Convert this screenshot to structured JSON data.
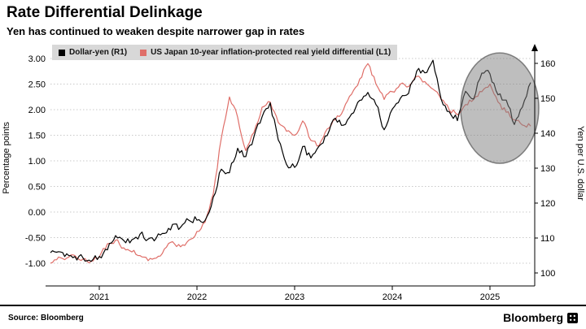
{
  "header": {
    "title": "Rate Differential Delinkage",
    "subtitle": "Yen has continued to weaken despite narrower gap in rates"
  },
  "legend": [
    {
      "label": "Dollar-yen (R1)",
      "color": "#000000"
    },
    {
      "label": "US Japan 10-year inflation-protected real yield differential (L1)",
      "color": "#df6e68"
    }
  ],
  "footer": {
    "source": "Source: Bloomberg",
    "brand": "Bloomberg"
  },
  "colors": {
    "grid": "#c9c9c9",
    "legend_bg": "#d8d8d8",
    "highlight_fill": "rgba(125,125,125,0.5)",
    "highlight_stroke": "rgba(60,60,60,0.6)"
  },
  "chart_data": {
    "type": "line",
    "title": "Rate Differential Delinkage",
    "subtitle": "Yen has continued to weaken despite narrower gap in rates",
    "grid": true,
    "legend_position": "top-left",
    "left_axis": {
      "label": "Percentage points",
      "min": -1.0,
      "max": 3.0,
      "tick_labels": [
        "3.00",
        "2.50",
        "2.00",
        "1.50",
        "1.00",
        "0.50",
        "0.00",
        "-0.50",
        "-1.00"
      ],
      "tick_values": [
        3.0,
        2.5,
        2.0,
        1.5,
        1.0,
        0.5,
        0.0,
        -0.5,
        -1.0
      ]
    },
    "right_axis": {
      "label": "Yen per U.S. dollar",
      "min": 100,
      "max": 160,
      "tick_labels": [
        "160",
        "150",
        "140",
        "130",
        "120",
        "110",
        "100"
      ],
      "tick_values": [
        160,
        150,
        140,
        130,
        120,
        110,
        100
      ]
    },
    "x_axis": {
      "min": 2020.5,
      "max": 2025.417,
      "tick_labels": [
        "2021",
        "2022",
        "2023",
        "2024",
        "2025"
      ],
      "tick_values": [
        2021,
        2022,
        2023,
        2024,
        2025
      ]
    },
    "x": [
      2020.5,
      2020.583,
      2020.667,
      2020.75,
      2020.833,
      2020.917,
      2021.0,
      2021.083,
      2021.167,
      2021.25,
      2021.333,
      2021.417,
      2021.5,
      2021.583,
      2021.667,
      2021.75,
      2021.833,
      2021.917,
      2022.0,
      2022.083,
      2022.167,
      2022.25,
      2022.333,
      2022.417,
      2022.5,
      2022.583,
      2022.667,
      2022.75,
      2022.833,
      2022.917,
      2023.0,
      2023.083,
      2023.167,
      2023.25,
      2023.333,
      2023.417,
      2023.5,
      2023.583,
      2023.667,
      2023.75,
      2023.833,
      2023.917,
      2024.0,
      2024.083,
      2024.167,
      2024.25,
      2024.333,
      2024.417,
      2024.5,
      2024.583,
      2024.667,
      2024.75,
      2024.833,
      2024.917,
      2025.0,
      2025.083,
      2025.167,
      2025.25,
      2025.333,
      2025.417
    ],
    "series": [
      {
        "name": "Dollar-yen (R1)",
        "axis": "right",
        "color": "#000000",
        "values": [
          105.8,
          106.1,
          105.5,
          104.7,
          104.3,
          103.3,
          104.7,
          106.6,
          110.7,
          109.3,
          109.5,
          111.1,
          109.7,
          110.0,
          111.3,
          113.9,
          113.1,
          115.1,
          115.1,
          115.0,
          121.7,
          129.7,
          128.7,
          135.7,
          133.3,
          138.9,
          144.7,
          148.7,
          138.1,
          131.1,
          130.2,
          136.2,
          132.9,
          136.3,
          139.3,
          144.3,
          142.3,
          145.5,
          149.4,
          151.7,
          148.2,
          141.0,
          146.9,
          150.0,
          151.4,
          157.8,
          157.3,
          160.9,
          149.8,
          146.2,
          143.6,
          152.0,
          149.8,
          157.2,
          157.0,
          151.0,
          149.5,
          142.5,
          147.5,
          154.5
        ]
      },
      {
        "name": "US Japan 10-year inflation-protected real yield differential (L1)",
        "axis": "left",
        "color": "#df6e68",
        "values": [
          -1.0,
          -0.88,
          -0.9,
          -0.85,
          -0.92,
          -0.96,
          -0.88,
          -0.62,
          -0.55,
          -0.7,
          -0.78,
          -0.85,
          -0.95,
          -0.9,
          -0.72,
          -0.58,
          -0.68,
          -0.55,
          -0.38,
          -0.2,
          0.35,
          1.45,
          2.25,
          1.85,
          1.2,
          1.55,
          2.05,
          2.15,
          1.75,
          1.58,
          1.5,
          1.78,
          1.4,
          1.3,
          1.62,
          1.8,
          2.0,
          2.3,
          2.6,
          2.9,
          2.5,
          2.2,
          2.35,
          2.5,
          2.45,
          2.65,
          2.55,
          2.4,
          2.2,
          2.0,
          1.9,
          2.1,
          2.2,
          2.35,
          2.5,
          2.15,
          1.95,
          1.8,
          1.7,
          1.68
        ]
      }
    ],
    "annotations": {
      "highlight_circle": {
        "x_center": 2025.1,
        "y_center_left_axis": 2.03,
        "rx_years": 0.4,
        "ry_left_units": 1.08
      }
    }
  }
}
